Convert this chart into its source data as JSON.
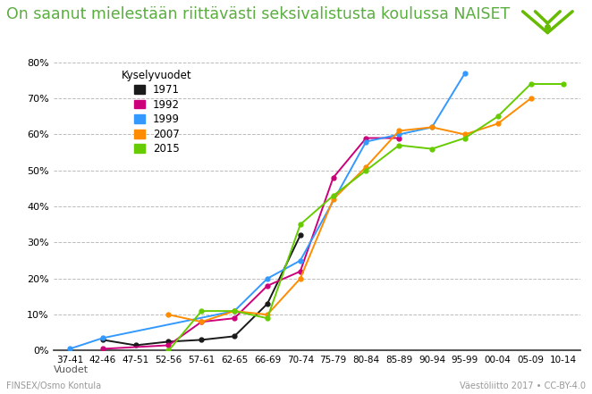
{
  "title": "On saanut mielestään riittävästi seksivalistusta koulussa NAISET",
  "xlabel_bottom": "Vuodet",
  "footnote_left": "FINSEX/Osmo Kontula",
  "footnote_right": "Väestöliitto 2017 • CC-BY-4.0",
  "categories": [
    "37-41",
    "42-46",
    "47-51",
    "52-56",
    "57-61",
    "62-65",
    "66-69",
    "70-74",
    "75-79",
    "80-84",
    "85-89",
    "90-94",
    "95-99",
    "00-04",
    "05-09",
    "10-14"
  ],
  "series": [
    {
      "label": "1971",
      "color": "#1a1a1a",
      "values": [
        null,
        3,
        1.5,
        2.5,
        3,
        4,
        13,
        32,
        null,
        null,
        null,
        null,
        null,
        null,
        null,
        null
      ]
    },
    {
      "label": "1992",
      "color": "#cc007a",
      "values": [
        null,
        0.5,
        null,
        1.5,
        8,
        9,
        18,
        22,
        48,
        59,
        59,
        null,
        null,
        null,
        null,
        null
      ]
    },
    {
      "label": "1999",
      "color": "#3399ff",
      "values": [
        0.5,
        3.5,
        null,
        null,
        null,
        11,
        20,
        25,
        null,
        58,
        60,
        62,
        77,
        null,
        null,
        null
      ]
    },
    {
      "label": "2007",
      "color": "#ff8c00",
      "values": [
        null,
        null,
        null,
        10,
        8,
        11,
        10,
        20,
        42,
        51,
        61,
        62,
        60,
        63,
        70,
        null
      ]
    },
    {
      "label": "2015",
      "color": "#66cc00",
      "values": [
        null,
        null,
        null,
        0,
        11,
        11,
        9,
        35,
        43,
        50,
        57,
        56,
        59,
        65,
        74,
        74
      ]
    }
  ],
  "ylim": [
    0,
    82
  ],
  "yticks": [
    0,
    10,
    20,
    30,
    40,
    50,
    60,
    70,
    80
  ],
  "ytick_labels": [
    "0%",
    "10%",
    "20%",
    "30%",
    "40%",
    "50%",
    "60%",
    "70%",
    "80%"
  ],
  "background_color": "#ffffff",
  "grid_color": "#bbbbbb",
  "title_color": "#5aad3f",
  "title_fontsize": 12.5,
  "legend_title": "Kyselyvuodet",
  "logo_color": "#66bb00"
}
